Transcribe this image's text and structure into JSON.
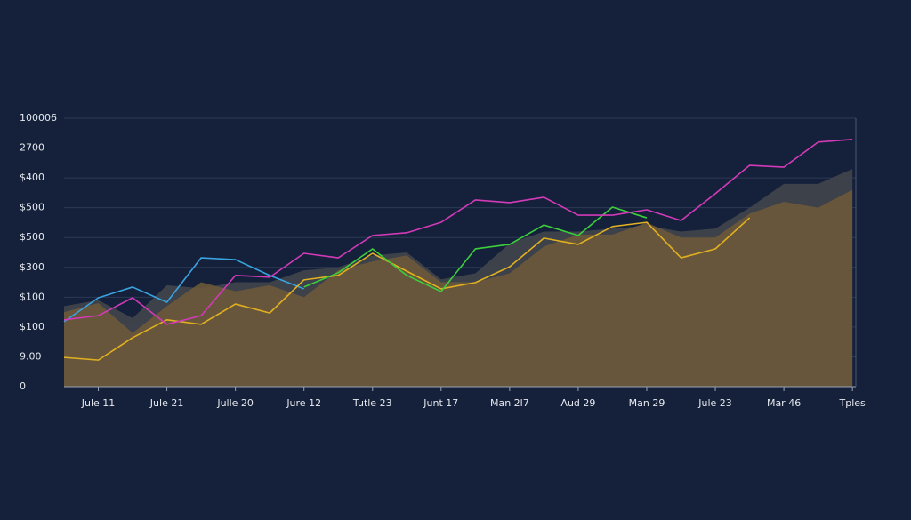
{
  "chart_data": {
    "type": "line",
    "x": [
      -0.5,
      0,
      0.5,
      1,
      1.5,
      2,
      2.5,
      3,
      3.5,
      4,
      4.5,
      5,
      5.5,
      6,
      6.5,
      7,
      7.5,
      8,
      8.5,
      9,
      9.5,
      10,
      10.5,
      11
    ],
    "xlim": [
      -0.5,
      11.05
    ],
    "xticks": [
      {
        "value": 0,
        "label": "Jule 11"
      },
      {
        "value": 1,
        "label": "Jule 21"
      },
      {
        "value": 2,
        "label": "Julle 20"
      },
      {
        "value": 3,
        "label": "Jure 12"
      },
      {
        "value": 4,
        "label": "Tutle 23"
      },
      {
        "value": 5,
        "label": "Junt 17"
      },
      {
        "value": 6,
        "label": "Man 2l7"
      },
      {
        "value": 7,
        "label": "Aud 29"
      },
      {
        "value": 8,
        "label": "Man 29"
      },
      {
        "value": 9,
        "label": "Jule 23"
      },
      {
        "value": 10,
        "label": "Mar 46"
      },
      {
        "value": 11,
        "label": "Tples"
      }
    ],
    "ylim": [
      0,
      9
    ],
    "yticks": [
      {
        "value": 0,
        "label": "0"
      },
      {
        "value": 1,
        "label": "9.00"
      },
      {
        "value": 2,
        "label": "$100"
      },
      {
        "value": 3,
        "label": "$100"
      },
      {
        "value": 4,
        "label": "$300"
      },
      {
        "value": 5,
        "label": "$500"
      },
      {
        "value": 6,
        "label": "$500"
      },
      {
        "value": 7,
        "label": "$400"
      },
      {
        "value": 8,
        "label": "2700"
      },
      {
        "value": 9,
        "label": "100006"
      }
    ],
    "grid": true,
    "series": [
      {
        "color": "#44464c",
        "area": true,
        "values": [
          2.7,
          2.9,
          2.3,
          3.4,
          3.3,
          3.5,
          3.5,
          3.9,
          4.0,
          4.4,
          4.5,
          3.6,
          3.8,
          4.8,
          5.2,
          5.2,
          5.3,
          5.4,
          5.2,
          5.3,
          6.0,
          6.8,
          6.8,
          7.3
        ]
      },
      {
        "color": "#6e5a38",
        "area": true,
        "values": [
          2.5,
          2.8,
          1.8,
          2.7,
          3.5,
          3.2,
          3.4,
          3.0,
          3.9,
          4.2,
          4.4,
          3.5,
          3.5,
          3.8,
          4.7,
          5.1,
          5.1,
          5.5,
          5.0,
          5.0,
          5.8,
          6.2,
          6.0,
          6.6
        ]
      },
      {
        "color": "#3aa3e0",
        "values": [
          2.18,
          2.98,
          3.34,
          2.83,
          4.32,
          4.26,
          3.73,
          3.28,
          null,
          null,
          null,
          null,
          null,
          null,
          null,
          null,
          null,
          null,
          null,
          null,
          null,
          null,
          null,
          null
        ]
      },
      {
        "color": "#e0b020",
        "values": [
          0.98,
          0.89,
          1.64,
          2.24,
          2.09,
          2.77,
          2.47,
          3.58,
          3.73,
          4.47,
          3.87,
          3.28,
          3.49,
          4.02,
          4.98,
          4.77,
          5.37,
          5.51,
          4.32,
          4.62,
          5.66,
          null,
          null,
          null
        ]
      },
      {
        "color": "#3ccf3c",
        "values": [
          null,
          null,
          null,
          null,
          null,
          null,
          null,
          3.34,
          3.82,
          4.62,
          3.73,
          3.19,
          4.62,
          4.77,
          5.42,
          5.07,
          6.02,
          5.66,
          null,
          null,
          null,
          null,
          null,
          null
        ]
      },
      {
        "color": "#d23ab8",
        "values": [
          2.24,
          2.38,
          2.98,
          2.09,
          2.38,
          3.73,
          3.67,
          4.47,
          4.32,
          5.07,
          5.16,
          5.51,
          6.26,
          6.17,
          6.35,
          5.75,
          5.75,
          5.93,
          5.57,
          6.47,
          7.42,
          7.36,
          8.2,
          8.29
        ]
      }
    ]
  }
}
